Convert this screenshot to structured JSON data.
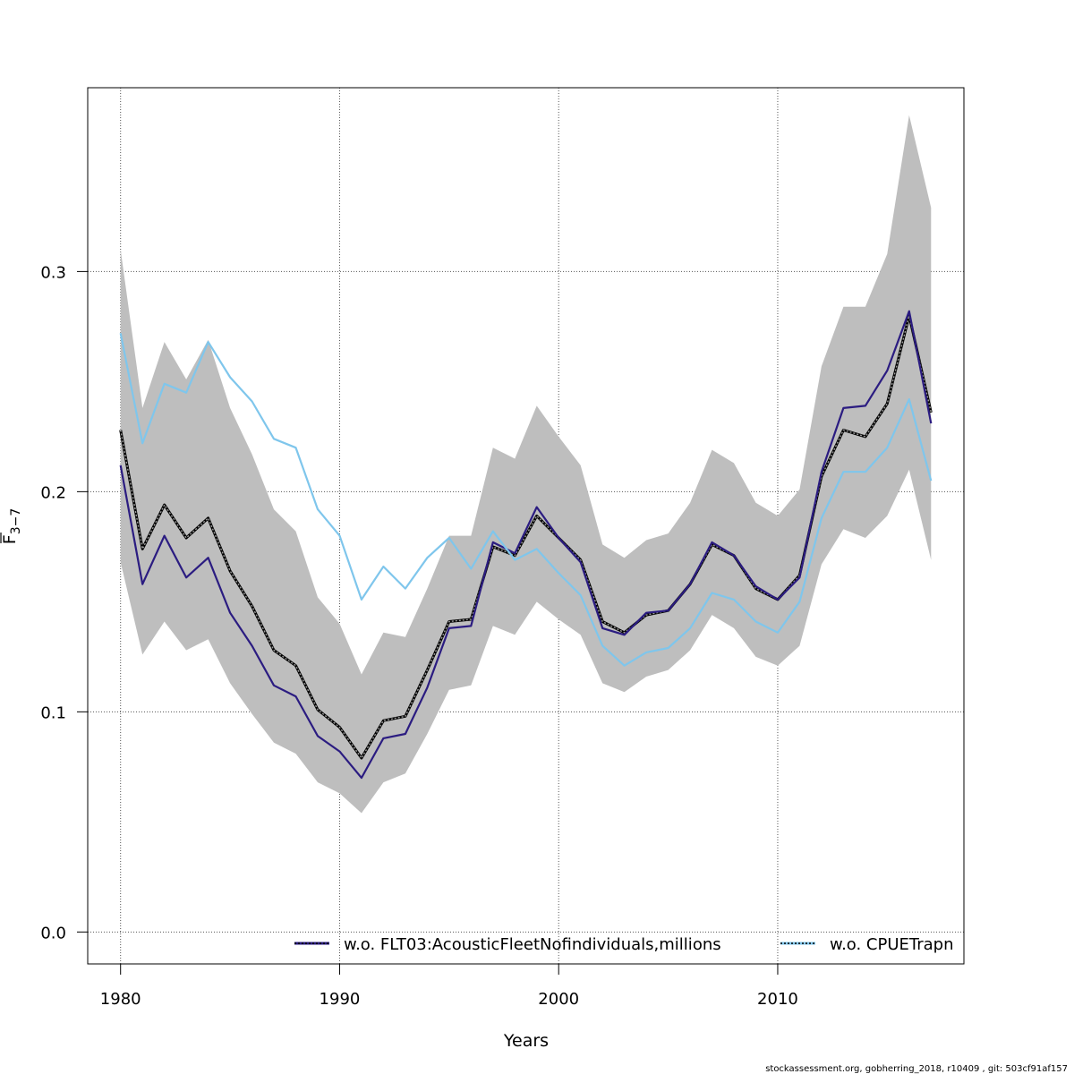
{
  "chart_data": {
    "type": "line",
    "xlabel": "Years",
    "ylabel": "F",
    "ylabel_sub": "3−7",
    "xlim": [
      1978.5,
      2018.5
    ],
    "ylim": [
      -0.0145,
      0.3835
    ],
    "xticks": [
      1980,
      1990,
      2000,
      2010
    ],
    "xtick_labels": [
      "1980",
      "1990",
      "2000",
      "2010"
    ],
    "yticks": [
      0.0,
      0.1,
      0.2,
      0.3
    ],
    "ytick_labels": [
      "0.0",
      "0.1",
      "0.2",
      "0.3"
    ],
    "grid": true,
    "x": [
      1980,
      1981,
      1982,
      1983,
      1984,
      1985,
      1986,
      1987,
      1988,
      1989,
      1990,
      1991,
      1992,
      1993,
      1994,
      1995,
      1996,
      1997,
      1998,
      1999,
      2000,
      2001,
      2002,
      2003,
      2004,
      2005,
      2006,
      2007,
      2008,
      2009,
      2010,
      2011,
      2012,
      2013,
      2014,
      2015,
      2016,
      2017
    ],
    "band": {
      "upper": [
        0.31,
        0.238,
        0.268,
        0.251,
        0.269,
        0.238,
        0.217,
        0.192,
        0.182,
        0.152,
        0.14,
        0.117,
        0.136,
        0.134,
        0.156,
        0.18,
        0.18,
        0.22,
        0.215,
        0.239,
        0.225,
        0.212,
        0.176,
        0.17,
        0.178,
        0.181,
        0.195,
        0.219,
        0.213,
        0.195,
        0.189,
        0.201,
        0.257,
        0.284,
        0.284,
        0.308,
        0.371,
        0.329
      ],
      "lower": [
        0.168,
        0.126,
        0.141,
        0.128,
        0.133,
        0.113,
        0.099,
        0.086,
        0.081,
        0.068,
        0.063,
        0.054,
        0.068,
        0.072,
        0.09,
        0.11,
        0.112,
        0.139,
        0.135,
        0.15,
        0.142,
        0.135,
        0.113,
        0.109,
        0.116,
        0.119,
        0.128,
        0.144,
        0.138,
        0.125,
        0.121,
        0.13,
        0.167,
        0.183,
        0.179,
        0.189,
        0.21,
        0.169
      ],
      "color": "#bebebe"
    },
    "series": [
      {
        "name": "",
        "color": "#000000",
        "style": "dotted-base",
        "values": [
          0.228,
          0.174,
          0.194,
          0.179,
          0.188,
          0.164,
          0.148,
          0.128,
          0.121,
          0.101,
          0.093,
          0.079,
          0.096,
          0.098,
          0.119,
          0.141,
          0.142,
          0.175,
          0.171,
          0.189,
          0.179,
          0.169,
          0.141,
          0.136,
          0.144,
          0.146,
          0.158,
          0.176,
          0.171,
          0.156,
          0.151,
          0.162,
          0.207,
          0.228,
          0.225,
          0.24,
          0.28,
          0.236
        ]
      },
      {
        "name": "w.o. FLT03:AcousticFleetNofindividuals,millions",
        "color": "#2b1c81",
        "style": "solid",
        "values": [
          0.212,
          0.158,
          0.18,
          0.161,
          0.17,
          0.145,
          0.13,
          0.112,
          0.107,
          0.089,
          0.082,
          0.07,
          0.088,
          0.09,
          0.111,
          0.138,
          0.139,
          0.177,
          0.172,
          0.193,
          0.179,
          0.168,
          0.138,
          0.135,
          0.145,
          0.146,
          0.158,
          0.177,
          0.171,
          0.157,
          0.151,
          0.161,
          0.209,
          0.238,
          0.239,
          0.255,
          0.282,
          0.231
        ]
      },
      {
        "name": "w.o. CPUETrapn",
        "color": "#7fc6ec",
        "style": "solid",
        "values": [
          0.272,
          0.222,
          0.249,
          0.245,
          0.268,
          0.252,
          0.241,
          0.224,
          0.22,
          0.192,
          0.18,
          0.151,
          0.166,
          0.156,
          0.17,
          0.179,
          0.165,
          0.182,
          0.169,
          0.174,
          0.163,
          0.153,
          0.13,
          0.121,
          0.127,
          0.129,
          0.138,
          0.154,
          0.151,
          0.141,
          0.136,
          0.15,
          0.188,
          0.209,
          0.209,
          0.22,
          0.242,
          0.205
        ]
      }
    ],
    "legend": {
      "position": "bottom",
      "items": [
        {
          "label": "w.o. FLT03:AcousticFleetNofindividuals,millions",
          "line_color": "#2b1c81",
          "dot_color": "#000000"
        },
        {
          "label": "w.o. CPUETrapn",
          "line_color": "#7fc6ec",
          "dot_color": "#000000"
        }
      ]
    }
  },
  "footer": "stockassessment.org, gobherring_2018, r10409 , git: 503cf91af157"
}
